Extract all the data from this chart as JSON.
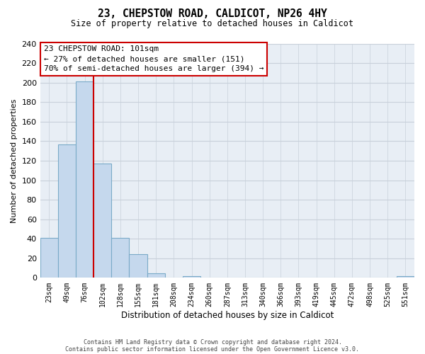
{
  "title_line1": "23, CHEPSTOW ROAD, CALDICOT, NP26 4HY",
  "title_line2": "Size of property relative to detached houses in Caldicot",
  "xlabel": "Distribution of detached houses by size in Caldicot",
  "ylabel": "Number of detached properties",
  "bar_labels": [
    "23sqm",
    "49sqm",
    "76sqm",
    "102sqm",
    "128sqm",
    "155sqm",
    "181sqm",
    "208sqm",
    "234sqm",
    "260sqm",
    "287sqm",
    "313sqm",
    "340sqm",
    "366sqm",
    "393sqm",
    "419sqm",
    "445sqm",
    "472sqm",
    "498sqm",
    "525sqm",
    "551sqm"
  ],
  "bar_values": [
    41,
    137,
    201,
    117,
    41,
    24,
    5,
    0,
    2,
    0,
    0,
    0,
    0,
    0,
    0,
    0,
    0,
    0,
    0,
    0,
    2
  ],
  "bar_color": "#c5d8ed",
  "bar_edge_color": "#7aaac8",
  "plot_bg_color": "#e8eef5",
  "ylim": [
    0,
    240
  ],
  "yticks": [
    0,
    20,
    40,
    60,
    80,
    100,
    120,
    140,
    160,
    180,
    200,
    220,
    240
  ],
  "vline_index": 3,
  "vline_color": "#cc0000",
  "ann_text_line1": "23 CHEPSTOW ROAD: 101sqm",
  "ann_text_line2": "← 27% of detached houses are smaller (151)",
  "ann_text_line3": "70% of semi-detached houses are larger (394) →",
  "footer_line1": "Contains HM Land Registry data © Crown copyright and database right 2024.",
  "footer_line2": "Contains public sector information licensed under the Open Government Licence v3.0.",
  "background_color": "#ffffff",
  "grid_color": "#c8d0da"
}
